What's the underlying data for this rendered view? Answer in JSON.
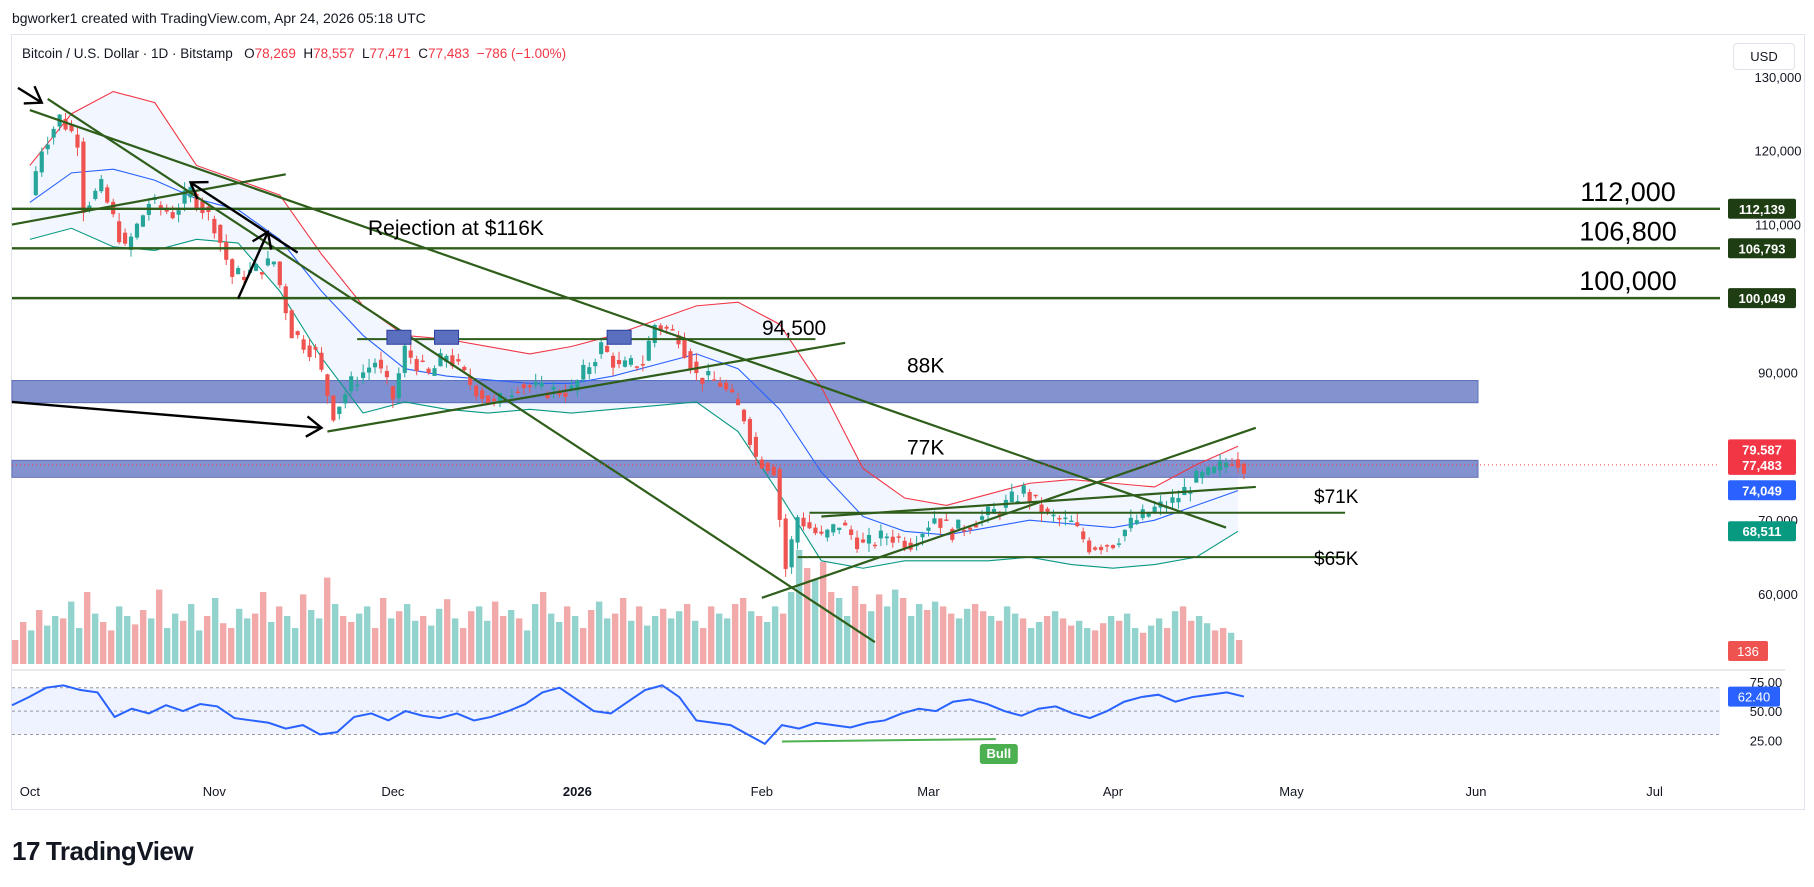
{
  "header": {
    "credit": "bgworker1 created with TradingView.com, Apr 24, 2026 05:18 UTC"
  },
  "legend": {
    "symbol": "Bitcoin / U.S. Dollar · 1D · Bitstamp",
    "o_label": "O",
    "o_value": "78,269",
    "h_label": "H",
    "h_value": "78,557",
    "l_label": "L",
    "l_value": "77,471",
    "c_label": "C",
    "c_value": "77,483",
    "change": "−786 (−1.00%)"
  },
  "currency_button": "USD",
  "logo_text": "TradingView",
  "colors": {
    "up": "#26a69a",
    "down": "#ef5350",
    "trendline": "#2e5e1a",
    "zone": "#5b6fbf",
    "bb_upper": "#f23645",
    "bb_basis": "#2962ff",
    "bb_lower": "#089981",
    "rsi": "#2962ff"
  },
  "chart_data": {
    "type": "candlestick",
    "symbol": "Bitcoin / U.S. Dollar",
    "interval": "1D",
    "exchange": "Bitstamp",
    "y_axis": {
      "min": 50000,
      "max": 132000,
      "ticks": [
        {
          "value": 130000,
          "label": "130,000"
        },
        {
          "value": 120000,
          "label": "120,000"
        },
        {
          "value": 110000,
          "label": "110,000"
        },
        {
          "value": 90000,
          "label": "90,000"
        },
        {
          "value": 70000,
          "label": "70,000"
        },
        {
          "value": 60000,
          "label": "60,000"
        }
      ]
    },
    "x_axis": {
      "start": "2025-09-28",
      "end": "2026-07-12",
      "ticks": [
        {
          "date": "2025-10-01",
          "label": "Oct",
          "bold": false
        },
        {
          "date": "2025-11-01",
          "label": "Nov",
          "bold": false
        },
        {
          "date": "2025-12-01",
          "label": "Dec",
          "bold": false
        },
        {
          "date": "2026-01-01",
          "label": "2026",
          "bold": true
        },
        {
          "date": "2026-02-01",
          "label": "Feb",
          "bold": false
        },
        {
          "date": "2026-03-01",
          "label": "Mar",
          "bold": false
        },
        {
          "date": "2026-04-01",
          "label": "Apr",
          "bold": false
        },
        {
          "date": "2026-05-01",
          "label": "May",
          "bold": false
        },
        {
          "date": "2026-06-01",
          "label": "Jun",
          "bold": false
        },
        {
          "date": "2026-07-01",
          "label": "Jul",
          "bold": false
        }
      ]
    },
    "close_path": [
      [
        "2025-10-01",
        114000
      ],
      [
        "2025-10-03",
        120500
      ],
      [
        "2025-10-06",
        124500
      ],
      [
        "2025-10-09",
        121500
      ],
      [
        "2025-10-10",
        112500
      ],
      [
        "2025-10-13",
        115000
      ],
      [
        "2025-10-17",
        106500
      ],
      [
        "2025-10-21",
        113000
      ],
      [
        "2025-10-25",
        111500
      ],
      [
        "2025-10-28",
        114500
      ],
      [
        "2025-11-01",
        110000
      ],
      [
        "2025-11-04",
        103000
      ],
      [
        "2025-11-07",
        103500
      ],
      [
        "2025-11-11",
        105000
      ],
      [
        "2025-11-14",
        95500
      ],
      [
        "2025-11-18",
        92500
      ],
      [
        "2025-11-21",
        84500
      ],
      [
        "2025-11-24",
        88500
      ],
      [
        "2025-11-28",
        91500
      ],
      [
        "2025-12-01",
        86500
      ],
      [
        "2025-12-03",
        93000
      ],
      [
        "2025-12-07",
        89500
      ],
      [
        "2025-12-10",
        92500
      ],
      [
        "2025-12-14",
        88500
      ],
      [
        "2025-12-18",
        85500
      ],
      [
        "2025-12-22",
        88500
      ],
      [
        "2025-12-26",
        87500
      ],
      [
        "2025-12-31",
        87500
      ],
      [
        "2026-01-05",
        93500
      ],
      [
        "2026-01-08",
        90500
      ],
      [
        "2026-01-12",
        91500
      ],
      [
        "2026-01-14",
        96500
      ],
      [
        "2026-01-18",
        95000
      ],
      [
        "2026-01-21",
        89500
      ],
      [
        "2026-01-25",
        88500
      ],
      [
        "2026-01-29",
        84000
      ],
      [
        "2026-01-31",
        78500
      ],
      [
        "2026-02-03",
        77000
      ],
      [
        "2026-02-05",
        63500
      ],
      [
        "2026-02-07",
        70500
      ],
      [
        "2026-02-11",
        67500
      ],
      [
        "2026-02-14",
        69500
      ],
      [
        "2026-02-18",
        66500
      ],
      [
        "2026-02-22",
        68000
      ],
      [
        "2026-02-26",
        67000
      ],
      [
        "2026-03-02",
        70500
      ],
      [
        "2026-03-05",
        68500
      ],
      [
        "2026-03-09",
        70000
      ],
      [
        "2026-03-13",
        71500
      ],
      [
        "2026-03-17",
        74000
      ],
      [
        "2026-03-21",
        70500
      ],
      [
        "2026-03-25",
        69500
      ],
      [
        "2026-03-28",
        66500
      ],
      [
        "2026-04-01",
        67000
      ],
      [
        "2026-04-04",
        69500
      ],
      [
        "2026-04-08",
        71500
      ],
      [
        "2026-04-11",
        72500
      ],
      [
        "2026-04-15",
        75500
      ],
      [
        "2026-04-18",
        76500
      ],
      [
        "2026-04-21",
        78500
      ],
      [
        "2026-04-23",
        77483
      ]
    ],
    "indicators": {
      "bb_upper": [
        [
          "2025-10-01",
          118000
        ],
        [
          "2025-10-08",
          125000
        ],
        [
          "2025-10-15",
          128000
        ],
        [
          "2025-10-22",
          126500
        ],
        [
          "2025-10-29",
          118000
        ],
        [
          "2025-11-05",
          116000
        ],
        [
          "2025-11-12",
          114000
        ],
        [
          "2025-11-19",
          106000
        ],
        [
          "2025-11-26",
          99000
        ],
        [
          "2025-12-03",
          95000
        ],
        [
          "2025-12-10",
          94500
        ],
        [
          "2025-12-17",
          93500
        ],
        [
          "2025-12-24",
          92500
        ],
        [
          "2025-12-31",
          93500
        ],
        [
          "2026-01-07",
          95000
        ],
        [
          "2026-01-14",
          97000
        ],
        [
          "2026-01-21",
          99000
        ],
        [
          "2026-01-28",
          99500
        ],
        [
          "2026-02-04",
          96500
        ],
        [
          "2026-02-11",
          88000
        ],
        [
          "2026-02-18",
          77000
        ],
        [
          "2026-02-25",
          73000
        ],
        [
          "2026-03-04",
          72000
        ],
        [
          "2026-03-11",
          73500
        ],
        [
          "2026-03-18",
          75000
        ],
        [
          "2026-03-25",
          75500
        ],
        [
          "2026-04-01",
          75000
        ],
        [
          "2026-04-08",
          74500
        ],
        [
          "2026-04-15",
          77500
        ],
        [
          "2026-04-22",
          80000
        ]
      ],
      "bb_basis": [
        [
          "2025-10-01",
          113000
        ],
        [
          "2025-10-08",
          117000
        ],
        [
          "2025-10-15",
          117500
        ],
        [
          "2025-10-22",
          116000
        ],
        [
          "2025-10-29",
          113500
        ],
        [
          "2025-11-05",
          112000
        ],
        [
          "2025-11-12",
          108000
        ],
        [
          "2025-11-19",
          101000
        ],
        [
          "2025-11-26",
          95000
        ],
        [
          "2025-12-03",
          90500
        ],
        [
          "2025-12-10",
          89500
        ],
        [
          "2025-12-17",
          89000
        ],
        [
          "2025-12-24",
          88500
        ],
        [
          "2025-12-31",
          88500
        ],
        [
          "2026-01-07",
          89500
        ],
        [
          "2026-01-14",
          91000
        ],
        [
          "2026-01-21",
          92500
        ],
        [
          "2026-01-28",
          90500
        ],
        [
          "2026-02-04",
          85000
        ],
        [
          "2026-02-11",
          76500
        ],
        [
          "2026-02-18",
          70500
        ],
        [
          "2026-02-25",
          68500
        ],
        [
          "2026-03-04",
          68000
        ],
        [
          "2026-03-11",
          69000
        ],
        [
          "2026-03-18",
          70000
        ],
        [
          "2026-03-25",
          69500
        ],
        [
          "2026-04-01",
          69000
        ],
        [
          "2026-04-08",
          70000
        ],
        [
          "2026-04-15",
          72000
        ],
        [
          "2026-04-22",
          74000
        ]
      ],
      "bb_lower": [
        [
          "2025-10-01",
          108000
        ],
        [
          "2025-10-08",
          109500
        ],
        [
          "2025-10-15",
          107000
        ],
        [
          "2025-10-22",
          106500
        ],
        [
          "2025-10-29",
          108000
        ],
        [
          "2025-11-05",
          107500
        ],
        [
          "2025-11-12",
          101000
        ],
        [
          "2025-11-19",
          92000
        ],
        [
          "2025-11-26",
          84500
        ],
        [
          "2025-12-03",
          86000
        ],
        [
          "2025-12-10",
          85000
        ],
        [
          "2025-12-17",
          84500
        ],
        [
          "2025-12-24",
          85000
        ],
        [
          "2025-12-31",
          84500
        ],
        [
          "2026-01-07",
          85000
        ],
        [
          "2026-01-14",
          85500
        ],
        [
          "2026-01-21",
          86000
        ],
        [
          "2026-01-28",
          82000
        ],
        [
          "2026-02-04",
          73500
        ],
        [
          "2026-02-11",
          64500
        ],
        [
          "2026-02-18",
          63500
        ],
        [
          "2026-02-25",
          64500
        ],
        [
          "2026-03-04",
          64500
        ],
        [
          "2026-03-11",
          64500
        ],
        [
          "2026-03-18",
          65000
        ],
        [
          "2026-03-25",
          64000
        ],
        [
          "2026-04-01",
          63500
        ],
        [
          "2026-04-08",
          64000
        ],
        [
          "2026-04-15",
          65000
        ],
        [
          "2026-04-22",
          68500
        ]
      ]
    },
    "price_labels": [
      {
        "text": "112,139",
        "value": 112139,
        "bg": "#1e3d13",
        "fg": "#ffffff"
      },
      {
        "text": "106,793",
        "value": 106793,
        "bg": "#1e3d13",
        "fg": "#ffffff"
      },
      {
        "text": "100,049",
        "value": 100049,
        "bg": "#1e3d13",
        "fg": "#ffffff"
      },
      {
        "text": "79,587",
        "value": 79587,
        "bg": "#f23645",
        "fg": "#ffffff"
      },
      {
        "text": "77,483",
        "value": 77483,
        "bg": "#f23645",
        "fg": "#ffffff"
      },
      {
        "text": "74,049",
        "value": 74049,
        "bg": "#2962ff",
        "fg": "#ffffff"
      },
      {
        "text": "68,511",
        "value": 68511,
        "bg": "#089981",
        "fg": "#ffffff"
      }
    ],
    "volume": {
      "last_value_label": "136",
      "values": [
        20,
        35,
        28,
        45,
        32,
        40,
        38,
        52,
        30,
        60,
        42,
        35,
        28,
        48,
        40,
        33,
        45,
        38,
        62,
        30,
        42,
        36,
        50,
        28,
        40,
        55,
        34,
        30,
        46,
        38,
        42,
        60,
        35,
        48,
        40,
        30,
        58,
        45,
        38,
        72,
        50,
        40,
        35,
        42,
        48,
        30,
        55,
        38,
        44,
        50,
        36,
        40,
        32,
        46,
        54,
        38,
        30,
        44,
        48,
        36,
        52,
        40,
        45,
        38,
        28,
        50,
        60,
        42,
        35,
        48,
        40,
        30,
        45,
        52,
        38,
        42,
        55,
        36,
        48,
        32,
        40,
        46,
        38,
        44,
        50,
        36,
        30,
        48,
        42,
        38,
        50,
        55,
        44,
        40,
        35,
        48,
        42,
        60,
        95,
        80,
        70,
        85,
        60,
        55,
        40,
        65,
        50,
        44,
        58,
        48,
        62,
        55,
        40,
        50,
        45,
        52,
        48,
        42,
        38,
        46,
        50,
        44,
        40,
        36,
        48,
        42,
        38,
        30,
        35,
        40,
        44,
        38,
        32,
        36,
        30,
        28,
        34,
        40,
        36,
        42,
        30,
        26,
        32,
        38,
        30,
        44,
        48,
        36,
        40,
        34,
        28,
        30,
        26,
        20
      ],
      "max": 100
    },
    "rsi": {
      "value_label": "62.40",
      "tick_labels": [
        "75.00",
        "50.00",
        "25.00"
      ],
      "ticks": [
        75,
        50,
        25
      ],
      "band": [
        30,
        70
      ],
      "values": [
        [
          0.0,
          55
        ],
        [
          0.01,
          62
        ],
        [
          0.02,
          70
        ],
        [
          0.03,
          72
        ],
        [
          0.04,
          68
        ],
        [
          0.05,
          66
        ],
        [
          0.06,
          45
        ],
        [
          0.07,
          52
        ],
        [
          0.08,
          48
        ],
        [
          0.09,
          55
        ],
        [
          0.1,
          50
        ],
        [
          0.11,
          56
        ],
        [
          0.12,
          54
        ],
        [
          0.13,
          44
        ],
        [
          0.14,
          42
        ],
        [
          0.15,
          40
        ],
        [
          0.16,
          35
        ],
        [
          0.17,
          38
        ],
        [
          0.18,
          30
        ],
        [
          0.19,
          32
        ],
        [
          0.2,
          45
        ],
        [
          0.21,
          48
        ],
        [
          0.22,
          42
        ],
        [
          0.23,
          50
        ],
        [
          0.24,
          46
        ],
        [
          0.25,
          44
        ],
        [
          0.26,
          48
        ],
        [
          0.27,
          42
        ],
        [
          0.28,
          45
        ],
        [
          0.29,
          50
        ],
        [
          0.3,
          56
        ],
        [
          0.31,
          66
        ],
        [
          0.32,
          70
        ],
        [
          0.33,
          60
        ],
        [
          0.34,
          50
        ],
        [
          0.35,
          48
        ],
        [
          0.36,
          58
        ],
        [
          0.37,
          68
        ],
        [
          0.38,
          72
        ],
        [
          0.39,
          62
        ],
        [
          0.4,
          42
        ],
        [
          0.41,
          40
        ],
        [
          0.42,
          38
        ],
        [
          0.43,
          30
        ],
        [
          0.44,
          22
        ],
        [
          0.45,
          38
        ],
        [
          0.46,
          35
        ],
        [
          0.47,
          40
        ],
        [
          0.48,
          38
        ],
        [
          0.49,
          36
        ],
        [
          0.5,
          40
        ],
        [
          0.51,
          42
        ],
        [
          0.52,
          48
        ],
        [
          0.53,
          52
        ],
        [
          0.54,
          50
        ],
        [
          0.55,
          58
        ],
        [
          0.56,
          60
        ],
        [
          0.57,
          56
        ],
        [
          0.58,
          50
        ],
        [
          0.59,
          46
        ],
        [
          0.6,
          52
        ],
        [
          0.61,
          54
        ],
        [
          0.62,
          48
        ],
        [
          0.63,
          44
        ],
        [
          0.64,
          50
        ],
        [
          0.65,
          58
        ],
        [
          0.66,
          62
        ],
        [
          0.67,
          64
        ],
        [
          0.68,
          58
        ],
        [
          0.69,
          62
        ],
        [
          0.7,
          64
        ],
        [
          0.71,
          66
        ],
        [
          0.72,
          62.4
        ]
      ]
    },
    "horizontal_levels": [
      {
        "value": 112139,
        "label": "112,000",
        "label_color": "#000000"
      },
      {
        "value": 106793,
        "label": "106,800",
        "label_color": "#000000"
      },
      {
        "value": 100049,
        "label": "100,000",
        "label_color": "#000000"
      }
    ],
    "zones": [
      {
        "top": 88900,
        "bottom": 85900,
        "label": "88K"
      },
      {
        "top": 78100,
        "bottom": 75800,
        "label": "77K"
      }
    ],
    "support_lines": [
      {
        "value": 71000,
        "label": "$71K"
      },
      {
        "value": 65000,
        "label": "$65K"
      },
      {
        "value": 94500,
        "label": "94,500"
      }
    ],
    "annotations": [
      {
        "text": "Rejection at $116K"
      },
      {
        "text": "Bull"
      }
    ]
  }
}
